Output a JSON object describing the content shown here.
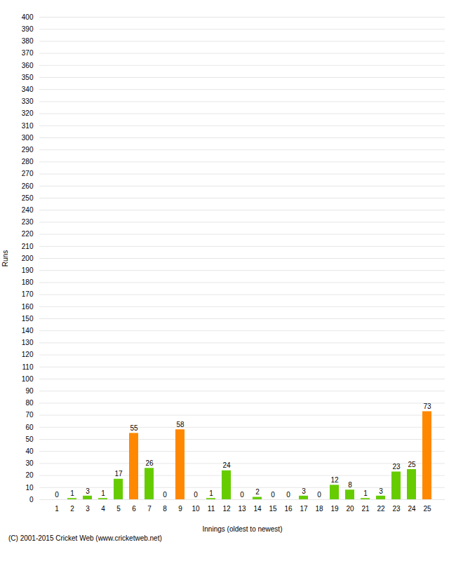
{
  "chart_data": {
    "type": "bar",
    "xlabel": "Innings (oldest to newest)",
    "ylabel": "Runs",
    "categories": [
      "1",
      "2",
      "3",
      "4",
      "5",
      "6",
      "7",
      "8",
      "9",
      "10",
      "11",
      "12",
      "13",
      "14",
      "15",
      "16",
      "17",
      "18",
      "19",
      "20",
      "21",
      "22",
      "23",
      "24",
      "25"
    ],
    "values": [
      0,
      1,
      3,
      1,
      17,
      55,
      26,
      0,
      58,
      0,
      1,
      24,
      0,
      2,
      0,
      0,
      3,
      0,
      12,
      8,
      1,
      3,
      23,
      25,
      73
    ],
    "colors": [
      "#66cc00",
      "#66cc00",
      "#66cc00",
      "#66cc00",
      "#66cc00",
      "#ff8800",
      "#66cc00",
      "#66cc00",
      "#ff8800",
      "#66cc00",
      "#66cc00",
      "#66cc00",
      "#66cc00",
      "#66cc00",
      "#66cc00",
      "#66cc00",
      "#66cc00",
      "#66cc00",
      "#66cc00",
      "#66cc00",
      "#66cc00",
      "#66cc00",
      "#66cc00",
      "#66cc00",
      "#ff8800"
    ],
    "ylim": [
      0,
      400
    ],
    "yticks": [
      0,
      10,
      20,
      30,
      40,
      50,
      60,
      70,
      80,
      90,
      100,
      110,
      120,
      130,
      140,
      150,
      160,
      170,
      180,
      190,
      200,
      210,
      220,
      230,
      240,
      250,
      260,
      270,
      280,
      290,
      300,
      310,
      320,
      330,
      340,
      350,
      360,
      370,
      380,
      390,
      400
    ],
    "grid": true,
    "data_labels": true,
    "annotations": [
      "(C) 2001-2015 Cricket Web (www.cricketweb.net)"
    ]
  }
}
